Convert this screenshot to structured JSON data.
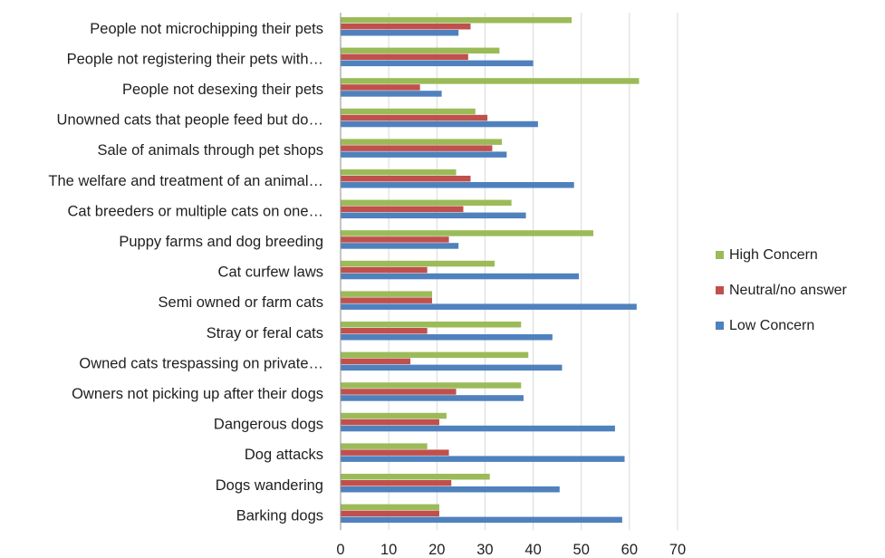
{
  "chart_data": {
    "type": "bar",
    "orientation": "horizontal",
    "categories": [
      "People not microchipping their pets",
      "People not registering their pets with…",
      "People not desexing their pets",
      "Unowned cats that people feed but do…",
      "Sale of animals through pet shops",
      "The welfare and treatment of an animal…",
      "Cat breeders or multiple cats on one…",
      "Puppy farms and dog breeding",
      "Cat curfew laws",
      "Semi owned or farm cats",
      "Stray or feral cats",
      "Owned cats trespassing on private…",
      "Owners not picking up after their dogs",
      "Dangerous dogs",
      "Dog attacks",
      "Dogs wandering",
      "Barking dogs"
    ],
    "series": [
      {
        "name": "High Concern",
        "color": "#9bbb59",
        "values": [
          48,
          33,
          62,
          28,
          33.5,
          24,
          35.5,
          52.5,
          32,
          19,
          37.5,
          39,
          37.5,
          22,
          18,
          31,
          20.5
        ]
      },
      {
        "name": "Neutral/no answer",
        "color": "#c0504d",
        "values": [
          27,
          26.5,
          16.5,
          30.5,
          31.5,
          27,
          25.5,
          22.5,
          18,
          19,
          18,
          14.5,
          24,
          20.5,
          22.5,
          23,
          20.5
        ]
      },
      {
        "name": "Low Concern",
        "color": "#4f81bd",
        "values": [
          24.5,
          40,
          21,
          41,
          34.5,
          48.5,
          38.5,
          24.5,
          49.5,
          61.5,
          44,
          46,
          38,
          57,
          59,
          45.5,
          58.5
        ]
      }
    ],
    "xlim": [
      0,
      70
    ],
    "xticks": [
      "0",
      "10",
      "20",
      "30",
      "40",
      "50",
      "60",
      "70"
    ],
    "grid": "vertical",
    "legend_position": "right",
    "legend": [
      "High Concern",
      "Neutral/no answer",
      "Low Concern"
    ]
  }
}
